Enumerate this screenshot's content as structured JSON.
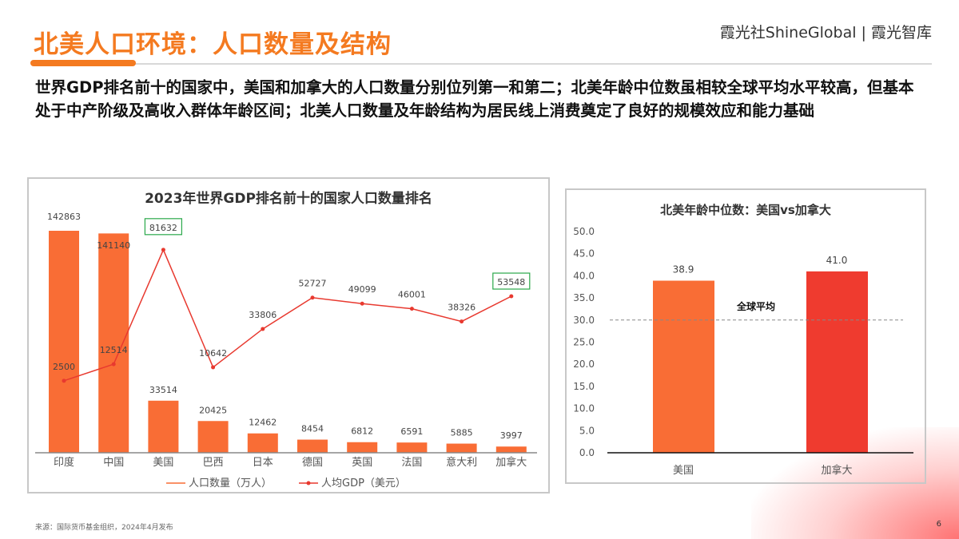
{
  "header": {
    "title": "北美人口环境：人口数量及结构",
    "brand": "霞光社ShineGlobal | 霞光智库"
  },
  "summary": "世界GDP排名前十的国家中，美国和加拿大的人口数量分别位列第一和第二；北美年龄中位数虽相较全球平均水平较高，但基本处于中产阶级及高收入群体年龄区间；北美人口数量及年龄结构为居民线上消费奠定了良好的规模效应和能力基础",
  "footer": {
    "source": "来源：国际货币基金组织，2024年4月发布",
    "page": "6"
  },
  "chart_data": [
    {
      "type": "bar+line",
      "title": "2023年世界GDP排名前十的国家人口数量排名",
      "categories": [
        "印度",
        "中国",
        "美国",
        "巴西",
        "日本",
        "德国",
        "英国",
        "法国",
        "意大利",
        "加拿大"
      ],
      "series": [
        {
          "name": "人口数量（万人）",
          "type": "bar",
          "color": "#f96d35",
          "values": [
            142863,
            141140,
            33514,
            20425,
            12462,
            8454,
            6812,
            6591,
            5885,
            3997
          ],
          "labels": [
            "142863",
            "141140",
            "33514",
            "20425",
            "12462",
            "8454",
            "6812",
            "6591",
            "5885",
            "3997"
          ]
        },
        {
          "name": "人均GDP（美元）",
          "type": "line",
          "color": "#e8392f",
          "values": [
            2500,
            12514,
            81632,
            10642,
            33806,
            52727,
            49099,
            46001,
            38326,
            53548
          ],
          "labels": [
            "2500",
            "12514",
            "81632",
            "10642",
            "33806",
            "52727",
            "49099",
            "46001",
            "38326",
            "53548"
          ],
          "highlighted": [
            "美国",
            "加拿大"
          ],
          "highlight_color": "#2aa84a"
        }
      ],
      "legend": "bottom"
    },
    {
      "type": "bar",
      "title": "北美年龄中位数：美国vs加拿大",
      "categories": [
        "美国",
        "加拿大"
      ],
      "values": [
        38.9,
        41.0
      ],
      "labels": [
        "38.9",
        "41.0"
      ],
      "colors": [
        "#f96d35",
        "#ef3b2f"
      ],
      "ylim": [
        0,
        50
      ],
      "yticks": [
        "0.0",
        "5.0",
        "10.0",
        "15.0",
        "20.0",
        "25.0",
        "30.0",
        "35.0",
        "40.0",
        "45.0",
        "50.0"
      ],
      "reference_line": {
        "label": "全球平均",
        "value": 30
      }
    }
  ]
}
